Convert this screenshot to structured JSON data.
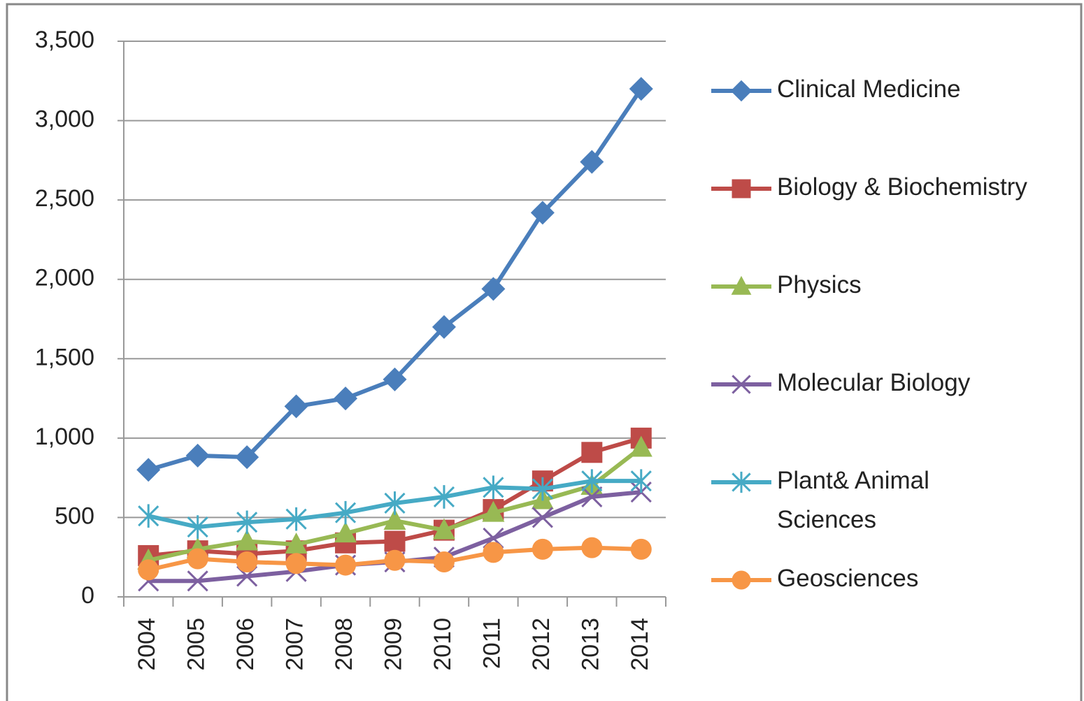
{
  "chart_data": {
    "type": "line",
    "categories": [
      "2004",
      "2005",
      "2006",
      "2007",
      "2008",
      "2009",
      "2010",
      "2011",
      "2012",
      "2013",
      "2014"
    ],
    "series": [
      {
        "name": "Clinical Medicine",
        "color": "#4a7ebb",
        "marker": "diamond",
        "values": [
          800,
          890,
          880,
          1200,
          1250,
          1370,
          1700,
          1940,
          2420,
          2740,
          3200
        ]
      },
      {
        "name": "Biology & Biochemistry",
        "color": "#be4b48",
        "marker": "square",
        "values": [
          260,
          290,
          270,
          290,
          340,
          350,
          420,
          550,
          730,
          910,
          1000
        ]
      },
      {
        "name": "Physics",
        "color": "#98b954",
        "marker": "triangle",
        "values": [
          230,
          300,
          350,
          330,
          400,
          480,
          420,
          530,
          610,
          700,
          940
        ]
      },
      {
        "name": "Molecular Biology",
        "color": "#7d60a0",
        "marker": "x",
        "values": [
          100,
          100,
          130,
          160,
          200,
          220,
          250,
          370,
          500,
          630,
          660
        ]
      },
      {
        "name": "Plant& Animal Sciences",
        "color": "#46aac5",
        "marker": "star",
        "values": [
          510,
          440,
          470,
          490,
          530,
          590,
          630,
          690,
          680,
          730,
          730
        ]
      },
      {
        "name": "Geosciences",
        "color": "#f79646",
        "marker": "circle",
        "values": [
          170,
          240,
          220,
          210,
          200,
          230,
          220,
          280,
          300,
          310,
          300
        ]
      }
    ],
    "ylim": [
      0,
      3500
    ],
    "yticks": [
      0,
      500,
      {
        "value": 1000,
        "label": "1,000"
      },
      {
        "value": 1500,
        "label": "1,500"
      },
      {
        "value": 2000,
        "label": "2,000"
      },
      {
        "value": 2500,
        "label": "2,500"
      },
      {
        "value": 3000,
        "label": "3,000"
      },
      {
        "value": 3500,
        "label": "3,500"
      }
    ],
    "grid": true,
    "legend": "right"
  }
}
